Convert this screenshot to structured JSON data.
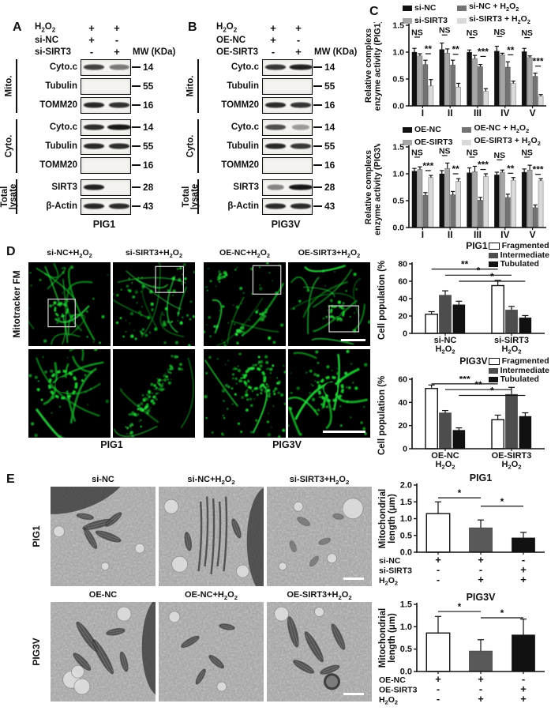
{
  "panel_a": {
    "letter": "A",
    "conditions": [
      {
        "label": "H~2~O~2~",
        "vals": [
          "+",
          "+"
        ]
      },
      {
        "label": "si-NC",
        "vals": [
          "+",
          "-"
        ]
      },
      {
        "label": "si-SIRT3",
        "vals": [
          "-",
          "+"
        ]
      }
    ],
    "mw_header": "MW (KDa)",
    "groups": [
      {
        "label": "Mito.",
        "rows": [
          {
            "protein": "Cyto.c",
            "mw": "14",
            "lanes": [
              [
                0.8,
                1.0
              ],
              [
                0.55,
                0.95
              ]
            ]
          },
          {
            "protein": "Tubulin",
            "mw": "55",
            "lanes": [
              [
                0,
                0
              ],
              [
                0,
                0
              ]
            ]
          },
          {
            "protein": "TOMM20",
            "mw": "16",
            "lanes": [
              [
                0.92,
                1.0
              ],
              [
                0.88,
                1.0
              ]
            ]
          }
        ]
      },
      {
        "label": "Cyto.",
        "rows": [
          {
            "protein": "Cyto.c",
            "mw": "14",
            "lanes": [
              [
                0.9,
                1.0
              ],
              [
                1.0,
                1.15
              ]
            ]
          },
          {
            "protein": "Tubulin",
            "mw": "55",
            "lanes": [
              [
                0.92,
                1.0
              ],
              [
                0.9,
                1.0
              ]
            ]
          },
          {
            "protein": "TOMM20",
            "mw": "16",
            "lanes": [
              [
                0,
                0
              ],
              [
                0,
                0
              ]
            ]
          }
        ]
      },
      {
        "label": "Total\nlysate",
        "rows": [
          {
            "protein": "SIRT3",
            "mw": "28",
            "lanes": [
              [
                0.95,
                1.0
              ],
              [
                0,
                0
              ]
            ]
          },
          {
            "protein": "β-Actin",
            "mw": "43",
            "lanes": [
              [
                0.92,
                1.0
              ],
              [
                0.9,
                1.0
              ]
            ]
          }
        ]
      }
    ],
    "caption": "PIG1"
  },
  "panel_b": {
    "letter": "B",
    "conditions": [
      {
        "label": "H~2~O~2~",
        "vals": [
          "+",
          "+"
        ]
      },
      {
        "label": "OE-NC",
        "vals": [
          "+",
          "-"
        ]
      },
      {
        "label": "OE-SIRT3",
        "vals": [
          "-",
          "+"
        ]
      }
    ],
    "mw_header": "MW (KDa)",
    "groups": [
      {
        "label": "Mito.",
        "rows": [
          {
            "protein": "Cyto.c",
            "mw": "14",
            "lanes": [
              [
                0.85,
                1.0
              ],
              [
                0.95,
                1.1
              ]
            ]
          },
          {
            "protein": "Tubulin",
            "mw": "55",
            "lanes": [
              [
                0,
                0
              ],
              [
                0,
                0
              ]
            ]
          },
          {
            "protein": "TOMM20",
            "mw": "16",
            "lanes": [
              [
                0.9,
                1.0
              ],
              [
                0.86,
                1.0
              ]
            ]
          }
        ]
      },
      {
        "label": "Cyto.",
        "rows": [
          {
            "protein": "Cyto.c",
            "mw": "14",
            "lanes": [
              [
                0.75,
                1.0
              ],
              [
                0.4,
                0.85
              ]
            ]
          },
          {
            "protein": "Tubulin",
            "mw": "55",
            "lanes": [
              [
                0.92,
                1.0
              ],
              [
                0.85,
                1.0
              ]
            ]
          },
          {
            "protein": "TOMM20",
            "mw": "16",
            "lanes": [
              [
                0,
                0
              ],
              [
                0,
                0
              ]
            ]
          }
        ]
      },
      {
        "label": "Total\nlysate",
        "rows": [
          {
            "protein": "SIRT3",
            "mw": "28",
            "lanes": [
              [
                0.5,
                0.8
              ],
              [
                1.0,
                1.15
              ]
            ]
          },
          {
            "protein": "β-Actin",
            "mw": "43",
            "lanes": [
              [
                0.9,
                1.0
              ],
              [
                0.9,
                1.0
              ]
            ]
          }
        ]
      }
    ],
    "caption": "PIG3V"
  },
  "panel_c": {
    "letter": "C"
  },
  "panel_d": {
    "letter": "D",
    "row_label": "Mitotracker FM",
    "col_headers": [
      "si-NC+H~2~O~2~",
      "si-SIRT3+H~2~O~2~",
      "OE-NC+H~2~O~2~",
      "OE-SIRT3+H~2~O~2~"
    ],
    "captions": [
      "PIG1",
      "PIG3V"
    ]
  },
  "panel_e": {
    "letter": "E",
    "row1": {
      "label": "PIG1",
      "headers": [
        "si-NC",
        "si-NC+H~2~O~2~",
        "si-SIRT3+H~2~O~2~"
      ]
    },
    "row2": {
      "label": "PIG3V",
      "headers": [
        "OE-NC",
        "OE-NC+H~2~O~2~",
        "OE-SIRT3+H~2~O~2~"
      ]
    }
  },
  "chart_data": [
    {
      "id": "pig1_complex",
      "kind": "c",
      "type": "grouped_bar",
      "ylabel_lines": [
        "Relative complexs",
        "enzyme activity (PIG1)"
      ],
      "categories": [
        "I",
        "II",
        "III",
        "IV",
        "V"
      ],
      "ylim": [
        0,
        1.5
      ],
      "ytickvals": [
        0,
        0.5,
        1.0,
        1.5
      ],
      "yticks": [
        "0.0",
        "0.5",
        "1.0",
        "1.5"
      ],
      "series": [
        {
          "name": "si-NC",
          "color": "#111111",
          "values": [
            1.0,
            1.05,
            1.0,
            1.02,
            1.01
          ],
          "errors": [
            0.07,
            0.12,
            0.04,
            0.09,
            0.06
          ]
        },
        {
          "name": "si-SIRT3",
          "color": "#a6a6a6",
          "values": [
            0.93,
            0.98,
            0.88,
            0.95,
            0.9
          ],
          "errors": [
            0.04,
            0.08,
            0.06,
            0.03,
            0.03
          ]
        },
        {
          "name": "si-NC + H~2~O~2~",
          "color": "#737373",
          "values": [
            0.77,
            0.76,
            0.73,
            0.72,
            0.55
          ],
          "errors": [
            0.08,
            0.09,
            0.04,
            0.1,
            0.06
          ]
        },
        {
          "name": "si-SIRT3 + H~2~O~2~",
          "color": "#d9d9d9",
          "values": [
            0.37,
            0.35,
            0.27,
            0.42,
            0.18
          ],
          "errors": [
            0.12,
            0.07,
            0.05,
            0.04,
            0.03
          ]
        }
      ],
      "legend": {
        "cols": 2,
        "entries": [
          {
            "label": "si-NC",
            "color": "#111111"
          },
          {
            "label": "si-NC + H~2~O~2~",
            "color": "#737373"
          },
          {
            "label": "si-SIRT3",
            "color": "#a6a6a6"
          },
          {
            "label": "si-SIRT3 + H~2~O~2~",
            "color": "#d9d9d9"
          }
        ]
      },
      "sig": [
        {
          "label": "NS",
          "b1": 0,
          "b2": 1,
          "y": 1.28
        },
        {
          "label": "**",
          "b1": 2,
          "b2": 3,
          "y": 0.97
        },
        {
          "label": "NS",
          "b1": 4,
          "b2": 5,
          "y": 1.32
        },
        {
          "label": "**",
          "b1": 6,
          "b2": 7,
          "y": 0.96
        },
        {
          "label": "NS",
          "b1": 8,
          "b2": 9,
          "y": 1.27
        },
        {
          "label": "***",
          "b1": 10,
          "b2": 11,
          "y": 0.92
        },
        {
          "label": "NS",
          "b1": 12,
          "b2": 13,
          "y": 1.29
        },
        {
          "label": "**",
          "b1": 14,
          "b2": 15,
          "y": 0.95
        },
        {
          "label": "NS",
          "b1": 16,
          "b2": 17,
          "y": 1.27
        },
        {
          "label": "***",
          "b1": 18,
          "b2": 19,
          "y": 0.74
        }
      ]
    },
    {
      "id": "pig3v_complex",
      "kind": "c",
      "type": "grouped_bar",
      "ylabel_lines": [
        "Relative complexs",
        "enzyme activity (PIG3V)"
      ],
      "categories": [
        "I",
        "II",
        "III",
        "IV",
        "V"
      ],
      "ylim": [
        0,
        1.5
      ],
      "ytickvals": [
        0,
        0.5,
        1.0,
        1.5
      ],
      "yticks": [
        "0.0",
        "0.5",
        "1.0",
        "1.5"
      ],
      "series": [
        {
          "name": "OE-NC",
          "color": "#111111",
          "values": [
            1.05,
            1.0,
            1.02,
            0.98,
            1.03
          ],
          "errors": [
            0.05,
            0.06,
            0.09,
            0.05,
            0.06
          ]
        },
        {
          "name": "OE-SIRT3",
          "color": "#a6a6a6",
          "values": [
            1.08,
            1.1,
            1.04,
            1.03,
            1.07
          ],
          "errors": [
            0.05,
            0.1,
            0.1,
            0.04,
            0.09
          ]
        },
        {
          "name": "OE-NC + H~2~O~2~",
          "color": "#737373",
          "values": [
            0.6,
            0.61,
            0.51,
            0.56,
            0.37
          ],
          "errors": [
            0.05,
            0.06,
            0.05,
            0.06,
            0.05
          ]
        },
        {
          "name": "OE-SIRT3 + H~2~O~2~",
          "color": "#d9d9d9",
          "values": [
            0.93,
            0.86,
            0.95,
            0.88,
            0.87
          ],
          "errors": [
            0.04,
            0.05,
            0.05,
            0.05,
            0.04
          ]
        }
      ],
      "legend": {
        "cols": 2,
        "entries": [
          {
            "label": "OE-NC",
            "color": "#111111"
          },
          {
            "label": "OE-NC + H~2~O~2~",
            "color": "#737373"
          },
          {
            "label": "OE-SIRT3",
            "color": "#a6a6a6"
          },
          {
            "label": "OE-SIRT3 + H~2~O~2~",
            "color": "#d9d9d9"
          }
        ]
      },
      "sig": [
        {
          "label": "NS",
          "b1": 0,
          "b2": 1,
          "y": 1.31
        },
        {
          "label": "***",
          "b1": 2,
          "b2": 3,
          "y": 1.06
        },
        {
          "label": "NS",
          "b1": 4,
          "b2": 5,
          "y": 1.34
        },
        {
          "label": "**",
          "b1": 6,
          "b2": 7,
          "y": 1.0
        },
        {
          "label": "NS",
          "b1": 8,
          "b2": 9,
          "y": 1.31
        },
        {
          "label": "***",
          "b1": 10,
          "b2": 11,
          "y": 1.08
        },
        {
          "label": "NS",
          "b1": 12,
          "b2": 13,
          "y": 1.26
        },
        {
          "label": "**",
          "b1": 14,
          "b2": 15,
          "y": 1.01
        },
        {
          "label": "NS",
          "b1": 16,
          "b2": 17,
          "y": 1.31
        },
        {
          "label": "***",
          "b1": 18,
          "b2": 19,
          "y": 0.99
        }
      ]
    },
    {
      "id": "pig1_pop",
      "kind": "d",
      "type": "grouped_bar",
      "ylabel_lines": [
        "Cell population (%)"
      ],
      "categories": [
        [
          "si-NC",
          "H~2~O~2~"
        ],
        [
          "si-SIRT3",
          "H~2~O~2~"
        ]
      ],
      "ylim": [
        0,
        80
      ],
      "ytickvals": [
        0,
        20,
        40,
        60,
        80
      ],
      "yticks": [
        "0",
        "20",
        "40",
        "60",
        "80"
      ],
      "series": [
        {
          "name": "Fragmented",
          "color": "#ffffff",
          "values": [
            22,
            55
          ],
          "errors": [
            3,
            6
          ]
        },
        {
          "name": "Intermediate",
          "color": "#4d4d4d",
          "values": [
            44,
            27
          ],
          "errors": [
            5,
            4
          ]
        },
        {
          "name": "Tubulated",
          "color": "#111111",
          "values": [
            33,
            18
          ],
          "errors": [
            4,
            2.5
          ]
        }
      ],
      "legend": {
        "title": "PIG1",
        "cols": 1,
        "entries": [
          {
            "label": "Fragmented",
            "color": "#ffffff"
          },
          {
            "label": "Intermediate",
            "color": "#4d4d4d"
          },
          {
            "label": "Tubulated",
            "color": "#111111"
          }
        ]
      },
      "sig": [
        {
          "label": "**",
          "b1": 0,
          "b2": 3,
          "y": 74
        },
        {
          "label": "*",
          "b1": 1,
          "b2": 4,
          "y": 67
        },
        {
          "label": "*",
          "b1": 2,
          "b2": 5,
          "y": 60
        }
      ]
    },
    {
      "id": "pig3v_pop",
      "kind": "d",
      "type": "grouped_bar",
      "ylabel_lines": [
        "Cell population (%)"
      ],
      "categories": [
        [
          "OE-NC",
          "H~2~O~2~"
        ],
        [
          "OE-SIRT3",
          "H~2~O~2~"
        ]
      ],
      "ylim": [
        0,
        60
      ],
      "ytickvals": [
        0,
        20,
        40,
        60
      ],
      "yticks": [
        "0",
        "20",
        "40",
        "60"
      ],
      "series": [
        {
          "name": "Fragmented",
          "color": "#ffffff",
          "values": [
            52,
            25
          ],
          "errors": [
            3,
            4
          ]
        },
        {
          "name": "Intermediate",
          "color": "#4d4d4d",
          "values": [
            31,
            47
          ],
          "errors": [
            2,
            6
          ]
        },
        {
          "name": "Tubulated",
          "color": "#111111",
          "values": [
            16,
            28
          ],
          "errors": [
            2,
            3
          ]
        }
      ],
      "legend": {
        "title": "PIG3V",
        "cols": 1,
        "entries": [
          {
            "label": "Fragmented",
            "color": "#ffffff"
          },
          {
            "label": "Intermediate",
            "color": "#4d4d4d"
          },
          {
            "label": "Tubulated",
            "color": "#111111"
          }
        ]
      },
      "sig": [
        {
          "label": "***",
          "b1": 0,
          "b2": 3,
          "y": 56
        },
        {
          "label": "**",
          "b1": 1,
          "b2": 4,
          "y": 51
        },
        {
          "label": "*",
          "b1": 2,
          "b2": 5,
          "y": 46
        }
      ]
    },
    {
      "id": "pig1_len",
      "kind": "e",
      "type": "bar",
      "title": "PIG1",
      "ylabel_lines": [
        "Mitochondrial",
        "length (μm)"
      ],
      "ylim": [
        0,
        2.0
      ],
      "ytickvals": [
        0,
        0.5,
        1.0,
        1.5,
        2.0
      ],
      "yticks": [
        "0.0",
        "0.5",
        "1.0",
        "1.5",
        "2.0"
      ],
      "bars": [
        {
          "color": "#ffffff",
          "value": 1.15,
          "error": 0.35
        },
        {
          "color": "#595959",
          "value": 0.73,
          "error": 0.23
        },
        {
          "color": "#111111",
          "value": 0.43,
          "error": 0.16
        }
      ],
      "sig": [
        {
          "label": "*",
          "b1": 0,
          "b2": 1,
          "y": 1.62
        },
        {
          "label": "*",
          "b1": 1,
          "b2": 2,
          "y": 1.37
        }
      ],
      "cond_table": [
        {
          "label": "si-NC",
          "vals": [
            "+",
            "+",
            "-"
          ]
        },
        {
          "label": "si-SIRT3",
          "vals": [
            "-",
            "-",
            "+"
          ]
        },
        {
          "label": "H~2~O~2~",
          "vals": [
            "-",
            "+",
            "+"
          ]
        }
      ]
    },
    {
      "id": "pig3v_len",
      "kind": "e",
      "type": "bar",
      "title": "PIG3V",
      "ylabel_lines": [
        "Mitochondrial",
        "length (μm)"
      ],
      "ylim": [
        0,
        1.5
      ],
      "ytickvals": [
        0,
        0.5,
        1.0,
        1.5
      ],
      "yticks": [
        "0.0",
        "0.5",
        "1.0",
        "1.5"
      ],
      "bars": [
        {
          "color": "#ffffff",
          "value": 0.86,
          "error": 0.37
        },
        {
          "color": "#595959",
          "value": 0.46,
          "error": 0.25
        },
        {
          "color": "#111111",
          "value": 0.82,
          "error": 0.35
        }
      ],
      "sig": [
        {
          "label": "*",
          "b1": 0,
          "b2": 1,
          "y": 1.34
        },
        {
          "label": "*",
          "b1": 1,
          "b2": 2,
          "y": 1.2
        }
      ],
      "cond_table": [
        {
          "label": "OE-NC",
          "vals": [
            "+",
            "+",
            "-"
          ]
        },
        {
          "label": "OE-SIRT3",
          "vals": [
            "-",
            "-",
            "+"
          ]
        },
        {
          "label": "H~2~O~2~",
          "vals": [
            "-",
            "+",
            "+"
          ]
        }
      ]
    }
  ]
}
